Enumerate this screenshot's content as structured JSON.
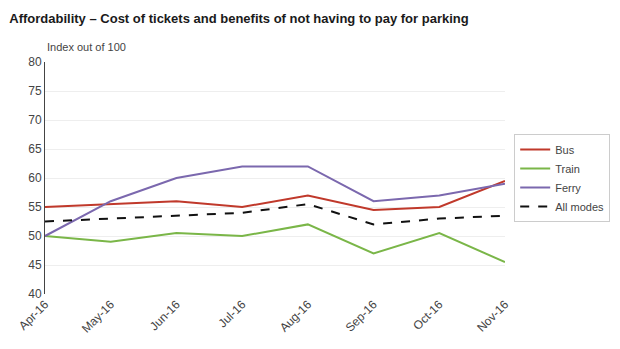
{
  "chart_data": {
    "type": "line",
    "title": "Affordability – Cost of tickets and benefits of not having to pay for parking",
    "subtitle": "Index out of 100",
    "categories": [
      "Apr-16",
      "May-16",
      "Jun-16",
      "Jul-16",
      "Aug-16",
      "Sep-16",
      "Oct-16",
      "Nov-16"
    ],
    "series": [
      {
        "name": "Bus",
        "color": "#c0392b",
        "values": [
          55,
          55.5,
          56,
          55,
          57,
          54.5,
          55,
          59.5
        ]
      },
      {
        "name": "Train",
        "color": "#7ab648",
        "values": [
          50,
          49,
          50.5,
          50,
          52,
          47,
          50.5,
          45.5
        ]
      },
      {
        "name": "Ferry",
        "color": "#7b68ae",
        "values": [
          50,
          56,
          60,
          62,
          62,
          56,
          57,
          59
        ]
      },
      {
        "name": "All modes",
        "color": "#111111",
        "line_style": "dashed",
        "values": [
          52.5,
          53,
          53.5,
          54,
          55.5,
          52,
          53,
          53.5
        ]
      }
    ],
    "ylim": [
      40,
      80
    ],
    "yticks": [
      40,
      45,
      50,
      55,
      60,
      65,
      70,
      75,
      80
    ],
    "grid": true,
    "legend": "right"
  }
}
